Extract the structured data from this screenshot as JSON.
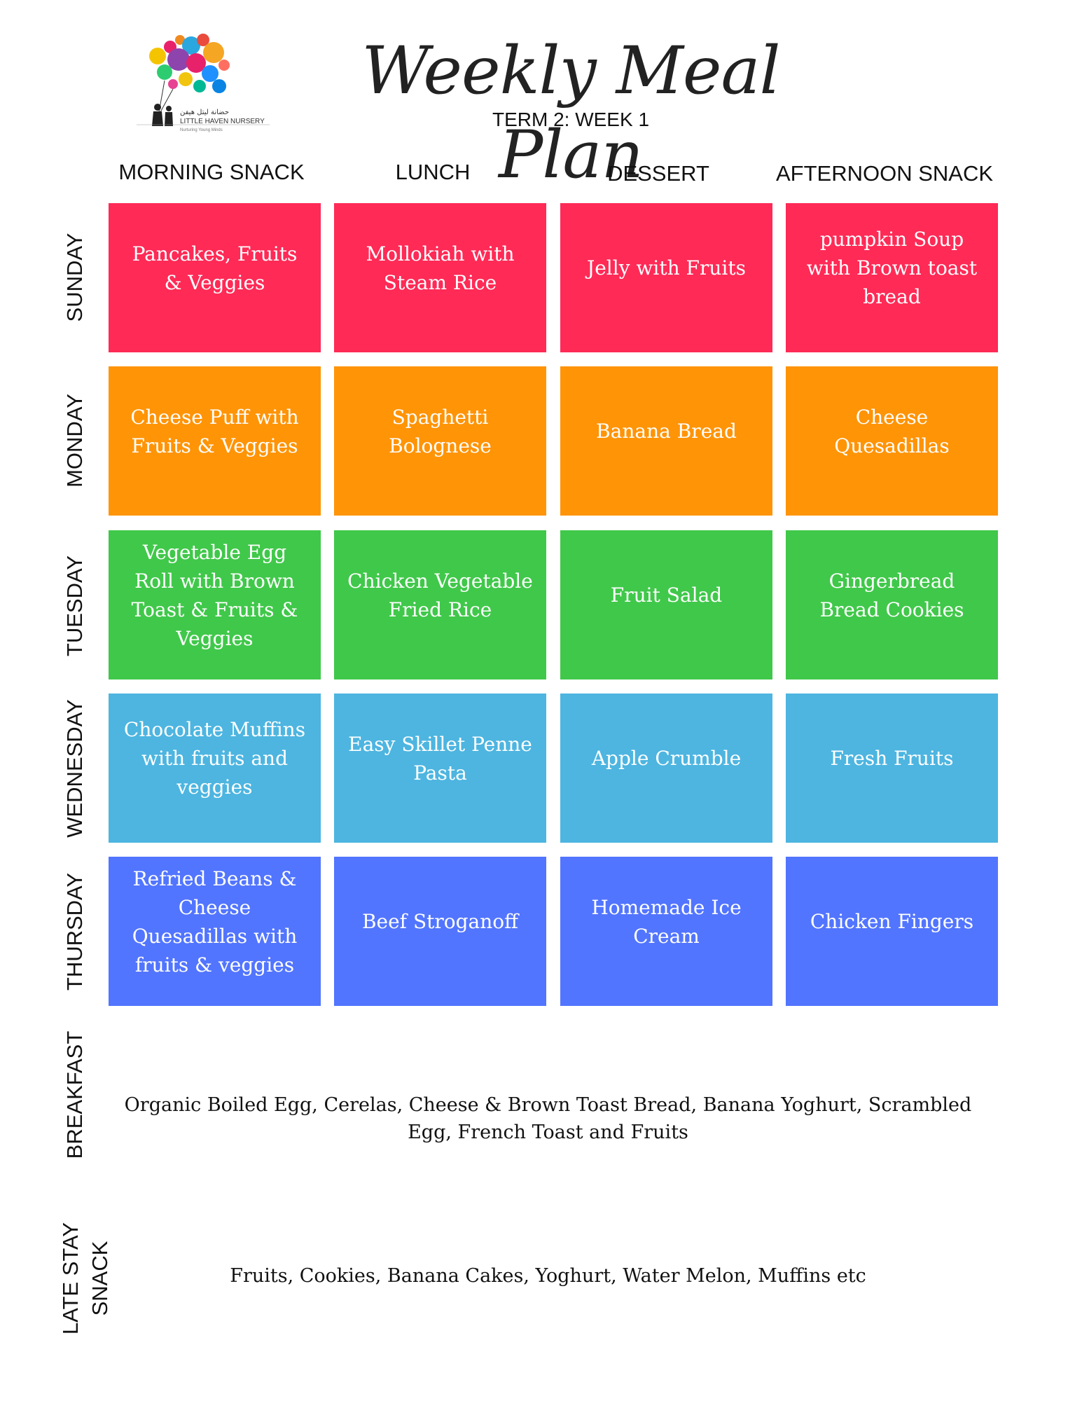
{
  "header": {
    "title": "Weekly Meal Plan",
    "subtitle": "TERM 2:  WEEK 1",
    "logo_text": "LITTLE HAVEN NURSERY",
    "logo_arabic": "حضانة ليتل هيفن",
    "logo_tagline": "Nurturing Young Minds"
  },
  "columns": [
    "MORNING SNACK",
    "LUNCH",
    "DESSERT",
    "AFTERNOON SNACK"
  ],
  "rows": [
    {
      "day": "SUNDAY",
      "color": "#ff2a56",
      "meals": [
        "Pancakes, Fruits & Veggies",
        "Mollokiah with Steam Rice",
        "Jelly with Fruits",
        "pumpkin Soup with Brown toast bread"
      ]
    },
    {
      "day": "MONDAY",
      "color": "#ff9407",
      "meals": [
        "Cheese Puff with Fruits & Veggies",
        "Spaghetti Bolognese",
        "Banana Bread",
        "Cheese Quesadillas"
      ]
    },
    {
      "day": "TUESDAY",
      "color": "#40c84a",
      "meals": [
        "Vegetable Egg Roll with Brown Toast & Fruits & Veggies",
        "Chicken Vegetable Fried Rice",
        "Fruit Salad",
        "Gingerbread Bread Cookies"
      ]
    },
    {
      "day": "WEDNESDAY",
      "color": "#4db5e0",
      "meals": [
        "Chocolate Muffins with fruits and veggies",
        "Easy Skillet Penne Pasta",
        "Apple Crumble",
        "Fresh Fruits"
      ]
    },
    {
      "day": "THURSDAY",
      "color": "#5275ff",
      "meals": [
        "Refried Beans & Cheese Quesadillas with fruits & veggies",
        "Beef Stroganoff",
        "Homemade Ice Cream",
        "Chicken Fingers"
      ]
    }
  ],
  "breakfast": {
    "label": "BREAKFAST",
    "text": "Organic Boiled Egg, Cerelas, Cheese & Brown Toast Bread, Banana Yoghurt, Scrambled Egg, French Toast and Fruits"
  },
  "late_stay": {
    "label": "LATE STAY SNACK",
    "text": "Fruits, Cookies, Banana Cakes, Yoghurt, Water Melon, Muffins etc"
  }
}
